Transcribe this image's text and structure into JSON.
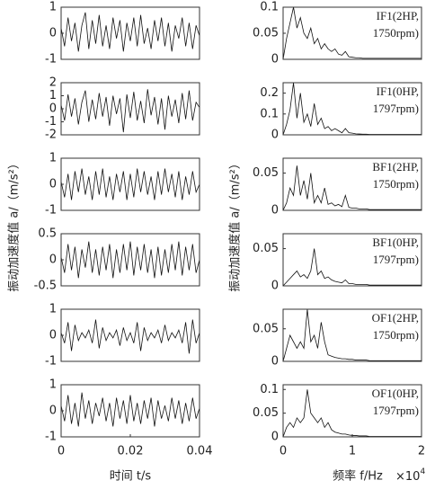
{
  "chart_data": [
    {
      "type": "line",
      "ylabel": "振动加速度值 a/（m/s²）",
      "xlim": [
        0,
        0.04
      ],
      "ylim": [
        -1,
        1
      ],
      "yticks": [
        -1,
        0,
        1
      ],
      "x": [
        0,
        0.001,
        0.002,
        0.003,
        0.004,
        0.005,
        0.006,
        0.007,
        0.008,
        0.009,
        0.01,
        0.011,
        0.012,
        0.013,
        0.014,
        0.015,
        0.016,
        0.017,
        0.018,
        0.019,
        0.02,
        0.021,
        0.022,
        0.023,
        0.024,
        0.025,
        0.026,
        0.027,
        0.028,
        0.029,
        0.03,
        0.031,
        0.032,
        0.033,
        0.034,
        0.035,
        0.036,
        0.037,
        0.038,
        0.039,
        0.04
      ],
      "values": [
        0.2,
        -0.5,
        0.6,
        -0.3,
        0.4,
        -0.7,
        0.3,
        0.8,
        -0.6,
        0.5,
        -0.4,
        0.7,
        -0.5,
        0.3,
        -0.6,
        0.6,
        -0.2,
        0.5,
        -0.7,
        0.4,
        -0.3,
        0.6,
        -0.5,
        0.7,
        -0.4,
        0.2,
        -0.6,
        0.5,
        -0.3,
        0.6,
        -0.5,
        0.4,
        -0.7,
        0.3,
        -0.2,
        0.6,
        -0.5,
        0.4,
        -0.6,
        0.3,
        -0.1
      ]
    },
    {
      "type": "line",
      "xlim": [
        0,
        0.04
      ],
      "ylim": [
        -2,
        2
      ],
      "yticks": [
        -2,
        -1,
        0,
        1,
        2
      ],
      "x": [
        0,
        0.001,
        0.002,
        0.003,
        0.004,
        0.005,
        0.006,
        0.007,
        0.008,
        0.009,
        0.01,
        0.011,
        0.012,
        0.013,
        0.014,
        0.015,
        0.016,
        0.017,
        0.018,
        0.019,
        0.02,
        0.021,
        0.022,
        0.023,
        0.024,
        0.025,
        0.026,
        0.027,
        0.028,
        0.029,
        0.03,
        0.031,
        0.032,
        0.033,
        0.034,
        0.035,
        0.036,
        0.037,
        0.038,
        0.039,
        0.04
      ],
      "values": [
        0.3,
        -0.9,
        1.1,
        -0.6,
        0.8,
        -1.2,
        0.5,
        1.4,
        -1.0,
        0.7,
        -0.8,
        1.2,
        -0.6,
        0.9,
        -1.3,
        1.0,
        -0.4,
        0.8,
        -1.8,
        1.1,
        -0.7,
        1.3,
        -0.9,
        0.6,
        -1.1,
        1.5,
        -0.5,
        0.9,
        -1.2,
        0.8,
        -1.6,
        1.0,
        -0.6,
        0.7,
        -1.1,
        1.2,
        -0.8,
        1.4,
        -0.9,
        0.5,
        0.1
      ]
    },
    {
      "type": "line",
      "xlim": [
        0,
        0.04
      ],
      "ylim": [
        -1,
        1
      ],
      "yticks": [
        -1,
        0,
        1
      ],
      "x": [
        0,
        0.001,
        0.002,
        0.003,
        0.004,
        0.005,
        0.006,
        0.007,
        0.008,
        0.009,
        0.01,
        0.011,
        0.012,
        0.013,
        0.014,
        0.015,
        0.016,
        0.017,
        0.018,
        0.019,
        0.02,
        0.021,
        0.022,
        0.023,
        0.024,
        0.025,
        0.026,
        0.027,
        0.028,
        0.029,
        0.03,
        0.031,
        0.032,
        0.033,
        0.034,
        0.035,
        0.036,
        0.037,
        0.038,
        0.039,
        0.04
      ],
      "values": [
        0.1,
        -0.5,
        0.4,
        -0.6,
        0.5,
        -0.3,
        0.6,
        -0.4,
        0.3,
        -0.6,
        0.5,
        -0.4,
        0.6,
        -0.5,
        0.3,
        -0.6,
        0.4,
        -0.3,
        0.5,
        -0.6,
        0.4,
        -0.5,
        0.6,
        -0.3,
        0.5,
        -0.4,
        0.3,
        -0.6,
        0.5,
        -0.4,
        0.6,
        -0.3,
        0.4,
        -0.5,
        0.5,
        -0.6,
        0.3,
        -0.4,
        0.5,
        -0.3,
        0
      ]
    },
    {
      "type": "line",
      "xlim": [
        0,
        0.04
      ],
      "ylim": [
        -0.5,
        0.5
      ],
      "yticks": [
        -0.5,
        0,
        0.5
      ],
      "x": [
        0,
        0.001,
        0.002,
        0.003,
        0.004,
        0.005,
        0.006,
        0.007,
        0.008,
        0.009,
        0.01,
        0.011,
        0.012,
        0.013,
        0.014,
        0.015,
        0.016,
        0.017,
        0.018,
        0.019,
        0.02,
        0.021,
        0.022,
        0.023,
        0.024,
        0.025,
        0.026,
        0.027,
        0.028,
        0.029,
        0.03,
        0.031,
        0.032,
        0.033,
        0.034,
        0.035,
        0.036,
        0.037,
        0.038,
        0.039,
        0.04
      ],
      "values": [
        0.05,
        -0.25,
        0.3,
        -0.2,
        0.25,
        -0.35,
        0.2,
        -0.15,
        0.35,
        -0.25,
        0.2,
        -0.3,
        0.25,
        -0.2,
        0.3,
        -0.35,
        0.2,
        -0.25,
        0.3,
        -0.2,
        0.35,
        -0.3,
        0.25,
        -0.2,
        0.3,
        -0.25,
        0.2,
        -0.35,
        0.25,
        -0.3,
        0.2,
        -0.25,
        0.3,
        -0.2,
        0.35,
        -0.3,
        0.25,
        -0.2,
        0.3,
        -0.25,
        0
      ]
    },
    {
      "type": "line",
      "xlim": [
        0,
        0.04
      ],
      "ylim": [
        -1,
        1
      ],
      "yticks": [
        -1,
        0,
        1
      ],
      "x": [
        0,
        0.001,
        0.002,
        0.003,
        0.004,
        0.005,
        0.006,
        0.007,
        0.008,
        0.009,
        0.01,
        0.011,
        0.012,
        0.013,
        0.014,
        0.015,
        0.016,
        0.017,
        0.018,
        0.019,
        0.02,
        0.021,
        0.022,
        0.023,
        0.024,
        0.025,
        0.026,
        0.027,
        0.028,
        0.029,
        0.03,
        0.031,
        0.032,
        0.033,
        0.034,
        0.035,
        0.036,
        0.037,
        0.038,
        0.039,
        0.04
      ],
      "values": [
        0.1,
        -0.3,
        0.5,
        -0.6,
        0.4,
        -0.2,
        0.1,
        -0.1,
        0.2,
        -0.3,
        0.6,
        -0.5,
        0.3,
        -0.2,
        0.1,
        -0.1,
        0.2,
        -0.4,
        0.3,
        -0.2,
        0.1,
        -0.3,
        0.5,
        -0.6,
        0.3,
        -0.2,
        0.1,
        -0.1,
        0.2,
        -0.3,
        0.4,
        -0.2,
        0.1,
        -0.1,
        0.2,
        -0.3,
        0.5,
        -0.7,
        0.6,
        -0.3,
        0.1
      ]
    },
    {
      "type": "line",
      "xlabel": "时间 t/s",
      "xlim": [
        0,
        0.04
      ],
      "ylim": [
        -1,
        1
      ],
      "yticks": [
        -1,
        0,
        1
      ],
      "xticks": [
        0,
        0.02,
        0.04
      ],
      "x": [
        0,
        0.001,
        0.002,
        0.003,
        0.004,
        0.005,
        0.006,
        0.007,
        0.008,
        0.009,
        0.01,
        0.011,
        0.012,
        0.013,
        0.014,
        0.015,
        0.016,
        0.017,
        0.018,
        0.019,
        0.02,
        0.021,
        0.022,
        0.023,
        0.024,
        0.025,
        0.026,
        0.027,
        0.028,
        0.029,
        0.03,
        0.031,
        0.032,
        0.033,
        0.034,
        0.035,
        0.036,
        0.037,
        0.038,
        0.039,
        0.04
      ],
      "values": [
        0.2,
        -0.4,
        0.6,
        -0.5,
        0.3,
        -0.6,
        0.7,
        -0.3,
        0.4,
        -0.5,
        0.3,
        -0.2,
        0.5,
        -0.4,
        0.3,
        -0.6,
        0.5,
        -0.3,
        0.4,
        -0.5,
        0.6,
        -0.4,
        0.3,
        -0.5,
        0.4,
        -0.3,
        0.5,
        -0.6,
        0.4,
        -0.3,
        0.2,
        -0.4,
        0.5,
        -0.3,
        0.4,
        -0.5,
        0.3,
        -0.4,
        0.5,
        -0.3,
        0.1
      ]
    },
    {
      "type": "line",
      "ylabel": "振动加速度值 a/（m/s²）",
      "annotation": [
        "IF1(2HP,",
        "1750rpm)"
      ],
      "xlim": [
        0,
        20000
      ],
      "ylim": [
        0,
        0.1
      ],
      "yticks": [
        0,
        0.05,
        0.1
      ],
      "x": [
        0,
        500,
        1000,
        1500,
        2000,
        2500,
        3000,
        3500,
        4000,
        4500,
        5000,
        5500,
        6000,
        6500,
        7000,
        7500,
        8000,
        8500,
        9000,
        9500,
        10000,
        10500,
        11000,
        11500,
        12000,
        12500,
        13000,
        13500,
        14000,
        14500,
        15000,
        15500,
        16000,
        16500,
        17000,
        17500,
        18000,
        18500,
        19000,
        19500,
        20000
      ],
      "values": [
        0,
        0.04,
        0.07,
        0.1,
        0.06,
        0.08,
        0.05,
        0.04,
        0.06,
        0.03,
        0.04,
        0.02,
        0.03,
        0.02,
        0.015,
        0.02,
        0.01,
        0.008,
        0.015,
        0.005,
        0.004,
        0.003,
        0.003,
        0.002,
        0.002,
        0.002,
        0.002,
        0.002,
        0.002,
        0.002,
        0.002,
        0.002,
        0.002,
        0.002,
        0.002,
        0.002,
        0.002,
        0.002,
        0.002,
        0.002,
        0.002
      ]
    },
    {
      "type": "line",
      "annotation": [
        "IF1(0HP,",
        "1797rpm)"
      ],
      "xlim": [
        0,
        20000
      ],
      "ylim": [
        0,
        0.25
      ],
      "yticks": [
        0,
        0.1,
        0.2
      ],
      "x": [
        0,
        500,
        1000,
        1500,
        2000,
        2500,
        3000,
        3500,
        4000,
        4500,
        5000,
        5500,
        6000,
        6500,
        7000,
        7500,
        8000,
        8500,
        9000,
        9500,
        10000,
        10500,
        11000,
        11500,
        12000,
        12500,
        13000,
        13500,
        14000,
        14500,
        15000,
        15500,
        16000,
        16500,
        17000,
        17500,
        18000,
        18500,
        19000,
        19500,
        20000
      ],
      "values": [
        0,
        0.05,
        0.12,
        0.25,
        0.08,
        0.2,
        0.06,
        0.1,
        0.04,
        0.15,
        0.05,
        0.08,
        0.03,
        0.04,
        0.02,
        0.03,
        0.02,
        0.01,
        0.03,
        0.01,
        0.008,
        0.005,
        0.004,
        0.003,
        0.003,
        0.002,
        0.002,
        0.002,
        0.002,
        0.002,
        0.002,
        0.002,
        0.002,
        0.002,
        0.002,
        0.002,
        0.002,
        0.002,
        0.002,
        0.002,
        0.002
      ]
    },
    {
      "type": "line",
      "annotation": [
        "BF1(2HP,",
        "1750rpm)"
      ],
      "xlim": [
        0,
        20000
      ],
      "ylim": [
        0,
        0.07
      ],
      "yticks": [
        0,
        0.05
      ],
      "x": [
        0,
        500,
        1000,
        1500,
        2000,
        2500,
        3000,
        3500,
        4000,
        4500,
        5000,
        5500,
        6000,
        6500,
        7000,
        7500,
        8000,
        8500,
        9000,
        9500,
        10000,
        10500,
        11000,
        11500,
        12000,
        12500,
        13000,
        13500,
        14000,
        14500,
        15000,
        15500,
        16000,
        16500,
        17000,
        17500,
        18000,
        18500,
        19000,
        19500,
        20000
      ],
      "values": [
        0,
        0.01,
        0.03,
        0.02,
        0.06,
        0.02,
        0.04,
        0.015,
        0.05,
        0.01,
        0.02,
        0.01,
        0.03,
        0.008,
        0.01,
        0.006,
        0.008,
        0.005,
        0.02,
        0.004,
        0.003,
        0.003,
        0.002,
        0.002,
        0.002,
        0.001,
        0.001,
        0.001,
        0.001,
        0.001,
        0.001,
        0.001,
        0.001,
        0.001,
        0.001,
        0.001,
        0.001,
        0.001,
        0.001,
        0.001,
        0.001
      ]
    },
    {
      "type": "line",
      "annotation": [
        "BF1(0HP,",
        "1797rpm)"
      ],
      "xlim": [
        0,
        20000
      ],
      "ylim": [
        0,
        0.07
      ],
      "yticks": [
        0,
        0.05
      ],
      "x": [
        0,
        500,
        1000,
        1500,
        2000,
        2500,
        3000,
        3500,
        4000,
        4500,
        5000,
        5500,
        6000,
        6500,
        7000,
        7500,
        8000,
        8500,
        9000,
        9500,
        10000,
        10500,
        11000,
        11500,
        12000,
        12500,
        13000,
        13500,
        14000,
        14500,
        15000,
        15500,
        16000,
        16500,
        17000,
        17500,
        18000,
        18500,
        19000,
        19500,
        20000
      ],
      "values": [
        0,
        0.005,
        0.01,
        0.015,
        0.02,
        0.012,
        0.015,
        0.01,
        0.02,
        0.05,
        0.015,
        0.02,
        0.01,
        0.012,
        0.008,
        0.006,
        0.005,
        0.004,
        0.008,
        0.003,
        0.003,
        0.002,
        0.002,
        0.002,
        0.002,
        0.001,
        0.001,
        0.001,
        0.001,
        0.001,
        0.001,
        0.001,
        0.001,
        0.001,
        0.001,
        0.001,
        0.001,
        0.001,
        0.001,
        0.001,
        0.001
      ]
    },
    {
      "type": "line",
      "annotation": [
        "OF1(2HP,",
        "1750rpm)"
      ],
      "xlim": [
        0,
        20000
      ],
      "ylim": [
        0,
        0.08
      ],
      "yticks": [
        0,
        0.05
      ],
      "x": [
        0,
        500,
        1000,
        1500,
        2000,
        2500,
        3000,
        3500,
        4000,
        4500,
        5000,
        5500,
        6000,
        6500,
        7000,
        7500,
        8000,
        8500,
        9000,
        9500,
        10000,
        10500,
        11000,
        11500,
        12000,
        12500,
        13000,
        13500,
        14000,
        14500,
        15000,
        15500,
        16000,
        16500,
        17000,
        17500,
        18000,
        18500,
        19000,
        19500,
        20000
      ],
      "values": [
        0,
        0.02,
        0.04,
        0.03,
        0.02,
        0.03,
        0.02,
        0.08,
        0.03,
        0.04,
        0.02,
        0.06,
        0.03,
        0.01,
        0.008,
        0.006,
        0.005,
        0.004,
        0.004,
        0.003,
        0.003,
        0.002,
        0.002,
        0.002,
        0.002,
        0.001,
        0.001,
        0.001,
        0.001,
        0.001,
        0.001,
        0.001,
        0.001,
        0.001,
        0.001,
        0.001,
        0.001,
        0.001,
        0.001,
        0.001,
        0.001
      ]
    },
    {
      "type": "line",
      "annotation": [
        "OF1(0HP,",
        "1797rpm)"
      ],
      "xlabel": "频率 f/Hz",
      "x_multiplier": "×10",
      "x_multiplier_exp": "4",
      "xlim": [
        0,
        20000
      ],
      "ylim": [
        0,
        0.11
      ],
      "yticks": [
        0,
        0.05,
        0.1
      ],
      "xticks": [
        {
          "value": 0,
          "label": "0"
        },
        {
          "value": 10000,
          "label": "1"
        },
        {
          "value": 20000,
          "label": "2"
        }
      ],
      "x": [
        0,
        500,
        1000,
        1500,
        2000,
        2500,
        3000,
        3500,
        4000,
        4500,
        5000,
        5500,
        6000,
        6500,
        7000,
        7500,
        8000,
        8500,
        9000,
        9500,
        10000,
        10500,
        11000,
        11500,
        12000,
        12500,
        13000,
        13500,
        14000,
        14500,
        15000,
        15500,
        16000,
        16500,
        17000,
        17500,
        18000,
        18500,
        19000,
        19500,
        20000
      ],
      "values": [
        0,
        0.02,
        0.03,
        0.02,
        0.04,
        0.03,
        0.04,
        0.1,
        0.05,
        0.04,
        0.03,
        0.04,
        0.02,
        0.03,
        0.015,
        0.01,
        0.008,
        0.006,
        0.006,
        0.004,
        0.003,
        0.003,
        0.002,
        0.002,
        0.002,
        0.001,
        0.001,
        0.001,
        0.001,
        0.001,
        0.001,
        0.001,
        0.001,
        0.001,
        0.001,
        0.001,
        0.001,
        0.001,
        0.001,
        0.001,
        0.001
      ]
    }
  ]
}
